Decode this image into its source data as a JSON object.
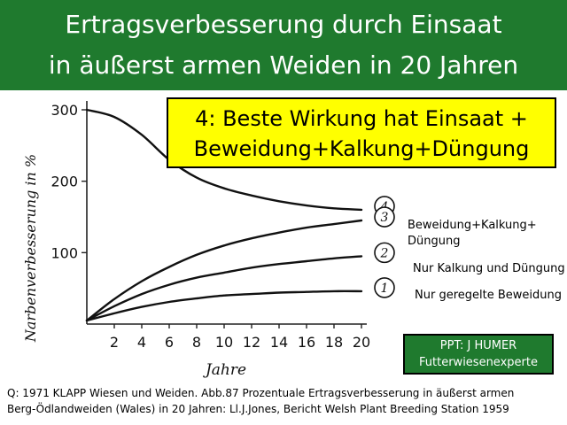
{
  "header": {
    "title_line1": "Ertragsverbesserung durch Einsaat",
    "title_line2": "in äußerst armen Weiden in 20 Jahren"
  },
  "callout": {
    "line1": "4: Beste Wirkung hat Einsaat +",
    "line2": "Beweidung+Kalkung+Düngung"
  },
  "legend_labels": {
    "curve3_line1": "Beweidung+Kalkung+",
    "curve3_line2": "Düngung",
    "curve2": "Nur Kalkung und Düngung",
    "curve1": "Nur geregelte Beweidung"
  },
  "credit": {
    "line1": "PPT: J HUMER",
    "line2": "Futterwiesenexperte"
  },
  "source": {
    "line1": "Q: 1971 KLAPP Wiesen und Weiden. Abb.87 Prozentuale Ertragsverbesserung in äußerst armen",
    "line2": "Berg-Ödlandweiden (Wales) in 20 Jahren: Ll.J.Jones, Bericht Welsh Plant Breeding Station 1959"
  },
  "chart_data": {
    "type": "line",
    "ylabel": "Narbenverbesserung in %",
    "xlabel": "Jahre",
    "x_ticks": [
      2,
      4,
      6,
      8,
      10,
      12,
      14,
      16,
      18,
      20
    ],
    "y_ticks": [
      100,
      200,
      300
    ],
    "xlim": [
      0,
      20
    ],
    "ylim": [
      0,
      300
    ],
    "series": [
      {
        "name": "4",
        "x": [
          0,
          2,
          4,
          6,
          8,
          10,
          12,
          14,
          16,
          18,
          20
        ],
        "values": [
          300,
          290,
          265,
          230,
          205,
          190,
          180,
          172,
          166,
          162,
          160
        ]
      },
      {
        "name": "3",
        "x": [
          0,
          2,
          4,
          6,
          8,
          10,
          12,
          14,
          16,
          18,
          20
        ],
        "values": [
          5,
          35,
          60,
          80,
          97,
          110,
          120,
          128,
          135,
          140,
          145
        ]
      },
      {
        "name": "2",
        "x": [
          0,
          2,
          4,
          6,
          8,
          10,
          12,
          14,
          16,
          18,
          20
        ],
        "values": [
          5,
          25,
          42,
          55,
          65,
          72,
          79,
          84,
          88,
          92,
          95
        ]
      },
      {
        "name": "1",
        "x": [
          0,
          2,
          4,
          6,
          8,
          10,
          12,
          14,
          16,
          18,
          20
        ],
        "values": [
          5,
          15,
          24,
          31,
          36,
          40,
          42,
          44,
          45,
          46,
          46
        ]
      }
    ]
  }
}
